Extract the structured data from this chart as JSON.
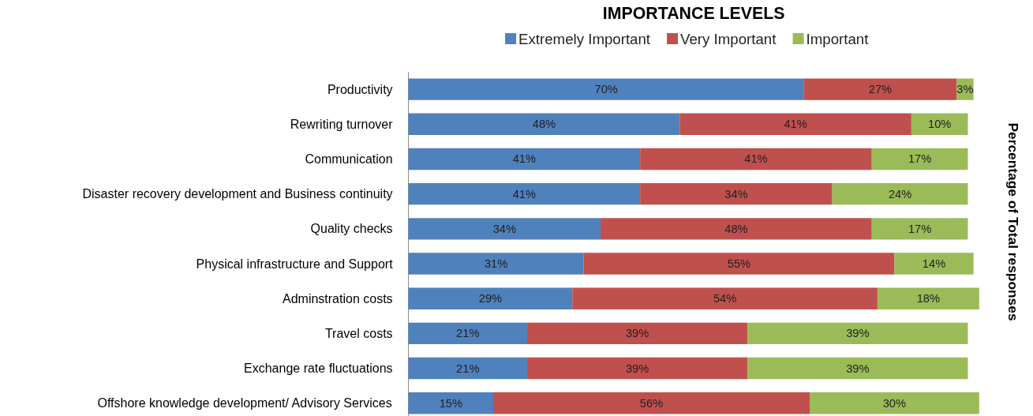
{
  "chart_data": {
    "type": "bar",
    "orientation": "horizontal",
    "stacked": true,
    "title": "IMPORTANCE LEVELS",
    "ylabel": "Percentage of Total responses",
    "categories": [
      "Productivity",
      "Rewriting turnover",
      "Communication",
      "Disaster recovery development and Business continuity",
      "Quality checks",
      "Physical infrastructure and Support",
      "Adminstration costs",
      "Travel costs",
      "Exchange rate fluctuations",
      "Offshore knowledge development/ Advisory Services"
    ],
    "series": [
      {
        "name": "Extremely Important",
        "color": "#4f81bd",
        "values": [
          70,
          48,
          41,
          41,
          34,
          31,
          29,
          21,
          21,
          15
        ],
        "value_labels": [
          "70%",
          "48%",
          "41%",
          "41%",
          "34%",
          "31%",
          "29%",
          "21%",
          "21%",
          "15%"
        ]
      },
      {
        "name": "Very Important",
        "color": "#c0504d",
        "values": [
          27,
          41,
          41,
          34,
          48,
          55,
          54,
          39,
          39,
          56
        ],
        "value_labels": [
          "27%",
          "41%",
          "41%",
          "34%",
          "48%",
          "55%",
          "54%",
          "39%",
          "39%",
          "56%"
        ]
      },
      {
        "name": "Important",
        "color": "#9bbb59",
        "values": [
          3,
          10,
          17,
          24,
          17,
          14,
          18,
          39,
          39,
          30
        ],
        "value_labels": [
          "3%",
          "10%",
          "17%",
          "24%",
          "17%",
          "14%",
          "18%",
          "39%",
          "39%",
          "30%"
        ]
      }
    ],
    "xlim": [
      0,
      101
    ],
    "legend": "top",
    "grid": false
  }
}
